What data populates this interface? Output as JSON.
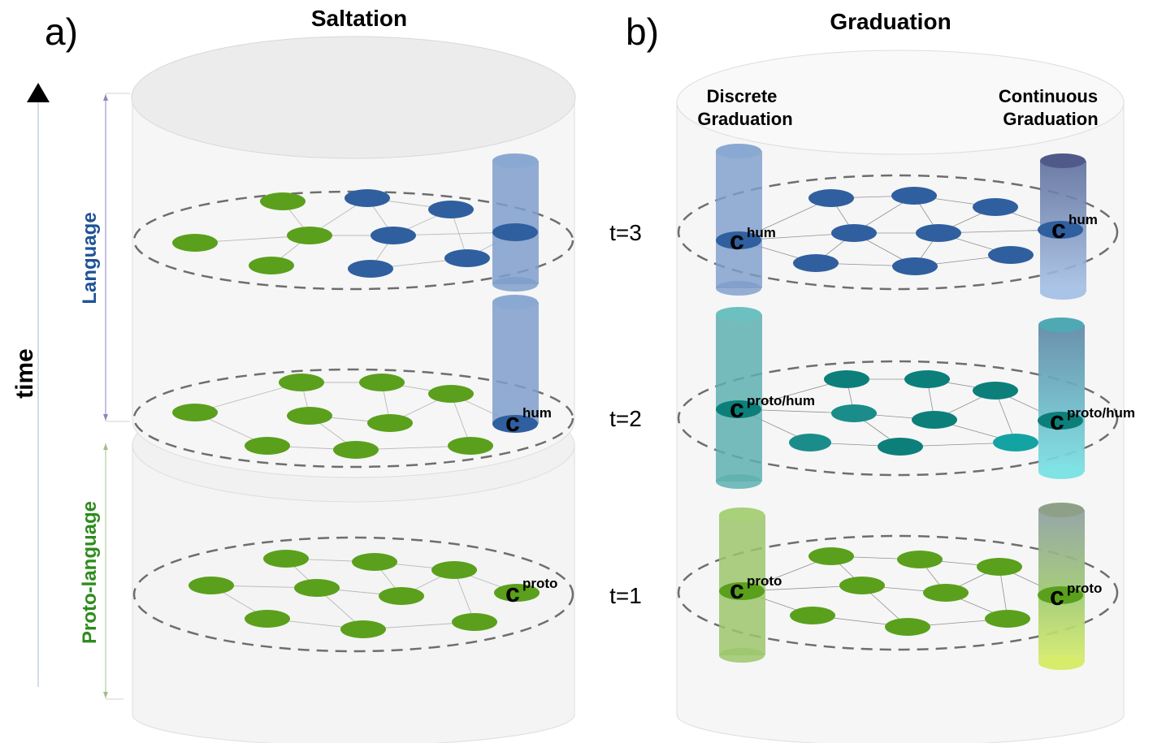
{
  "panel_a": {
    "label": "a)",
    "title": "Saltation",
    "language_label": "Language",
    "protolanguage_label": "Proto-language",
    "c_hum": {
      "base": "c",
      "sup": "hum"
    },
    "c_proto": {
      "base": "c",
      "sup": "proto"
    }
  },
  "panel_b": {
    "label": "b)",
    "title": "Graduation",
    "discrete_label": [
      "Discrete",
      "Graduation"
    ],
    "continuous_label": [
      "Continuous",
      "Graduation"
    ],
    "c_hum": {
      "base": "c",
      "sup": "hum"
    },
    "c_proto_hum": {
      "base": "c",
      "sup": "proto/hum"
    },
    "c_proto": {
      "base": "c",
      "sup": "proto"
    }
  },
  "axis": {
    "time_label": "time"
  },
  "time_steps": [
    "t=3",
    "t=2",
    "t=1"
  ],
  "colors": {
    "green": "#5aa01c",
    "blue": "#2f5f9f",
    "teal_dark": "#0d7f7b",
    "teal_mid": "#1a8d8a",
    "teal_light": "#14a3a3",
    "language_text": "#1f5396",
    "protolanguage_text": "#2e8b1e",
    "cylinder_fill": "#f4f4f4",
    "cylinder_stroke": "#dddddd",
    "dash": "#6e6e6e"
  }
}
